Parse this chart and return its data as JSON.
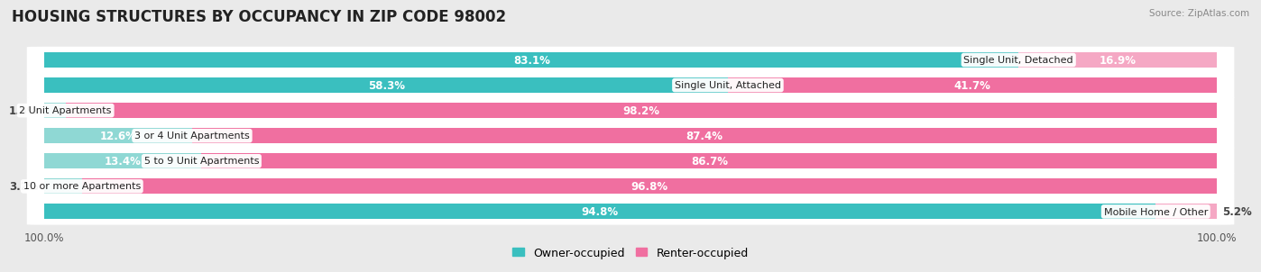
{
  "title": "HOUSING STRUCTURES BY OCCUPANCY IN ZIP CODE 98002",
  "source": "Source: ZipAtlas.com",
  "categories": [
    "Single Unit, Detached",
    "Single Unit, Attached",
    "2 Unit Apartments",
    "3 or 4 Unit Apartments",
    "5 to 9 Unit Apartments",
    "10 or more Apartments",
    "Mobile Home / Other"
  ],
  "owner_pct": [
    83.1,
    58.3,
    1.8,
    12.6,
    13.4,
    3.2,
    94.8
  ],
  "renter_pct": [
    16.9,
    41.7,
    98.2,
    87.4,
    86.7,
    96.8,
    5.2
  ],
  "owner_color_large": "#3abfbf",
  "owner_color_small": "#8fd8d4",
  "renter_color_large": "#f06fa0",
  "renter_color_small": "#f5a8c4",
  "bg_color": "#eaeaea",
  "row_bg_light": "#f5f5f5",
  "row_bg_dark": "#e8e8e8",
  "title_fontsize": 12,
  "label_fontsize": 8.5,
  "bar_height": 0.6,
  "legend_owner": "Owner-occupied",
  "legend_renter": "Renter-occupied",
  "x_left_label": "100.0%",
  "x_right_label": "100.0%"
}
